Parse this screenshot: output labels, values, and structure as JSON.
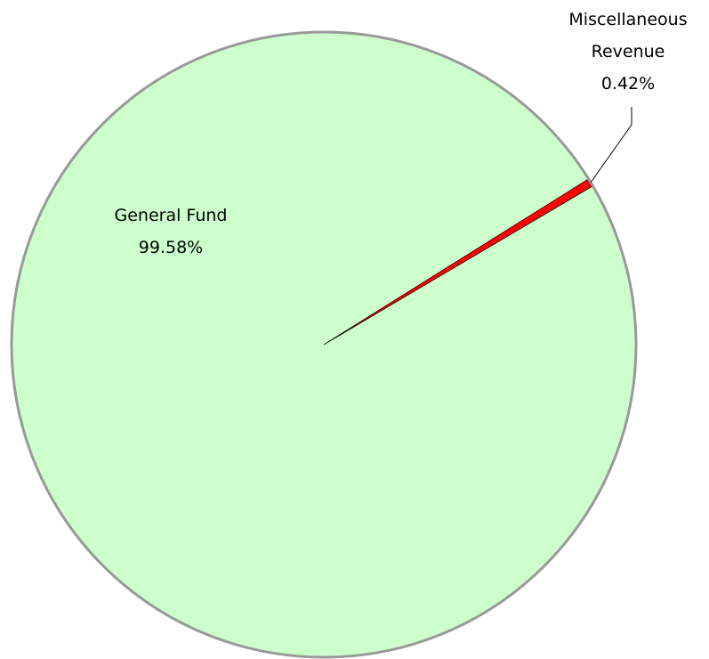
{
  "chart_data": {
    "type": "pie",
    "categories": [
      "General Fund",
      "Miscellaneous Revenue"
    ],
    "values": [
      99.58,
      0.42
    ],
    "value_labels": [
      "99.58%",
      "0.42%"
    ],
    "colors": [
      "#ccffcc",
      "#ff0000"
    ]
  }
}
